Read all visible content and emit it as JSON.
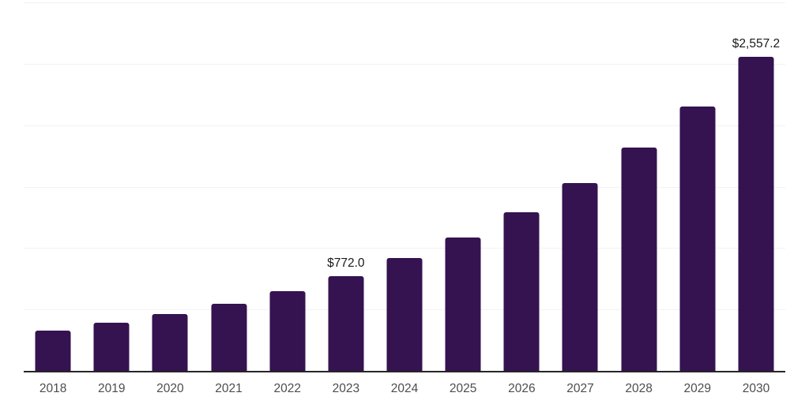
{
  "chart": {
    "bar_color": "#351250",
    "value_label_color": "#1a1a1a",
    "tick_label_color": "#4d4d4d",
    "axis_line_color": "#262626",
    "gridline_color": "#f2f2f2",
    "background_color": "#ffffff"
  },
  "chart_data": {
    "type": "bar",
    "title": "",
    "xlabel": "",
    "ylabel": "",
    "categories": [
      "2018",
      "2019",
      "2020",
      "2021",
      "2022",
      "2023",
      "2024",
      "2025",
      "2026",
      "2027",
      "2028",
      "2029",
      "2030"
    ],
    "values": [
      328.2,
      389.4,
      462.1,
      548.3,
      650.6,
      772.0,
      916.1,
      1087.0,
      1289.9,
      1530.6,
      1816.2,
      2155.2,
      2557.2
    ],
    "data_labels": [
      "",
      "",
      "",
      "",
      "",
      "$772.0",
      "",
      "",
      "",
      "",
      "",
      "",
      "$2,557.2"
    ],
    "ylim": [
      0,
      3000
    ],
    "gridline_step": 500,
    "grid": true,
    "legend": false,
    "y_axis_labels_visible": false
  }
}
